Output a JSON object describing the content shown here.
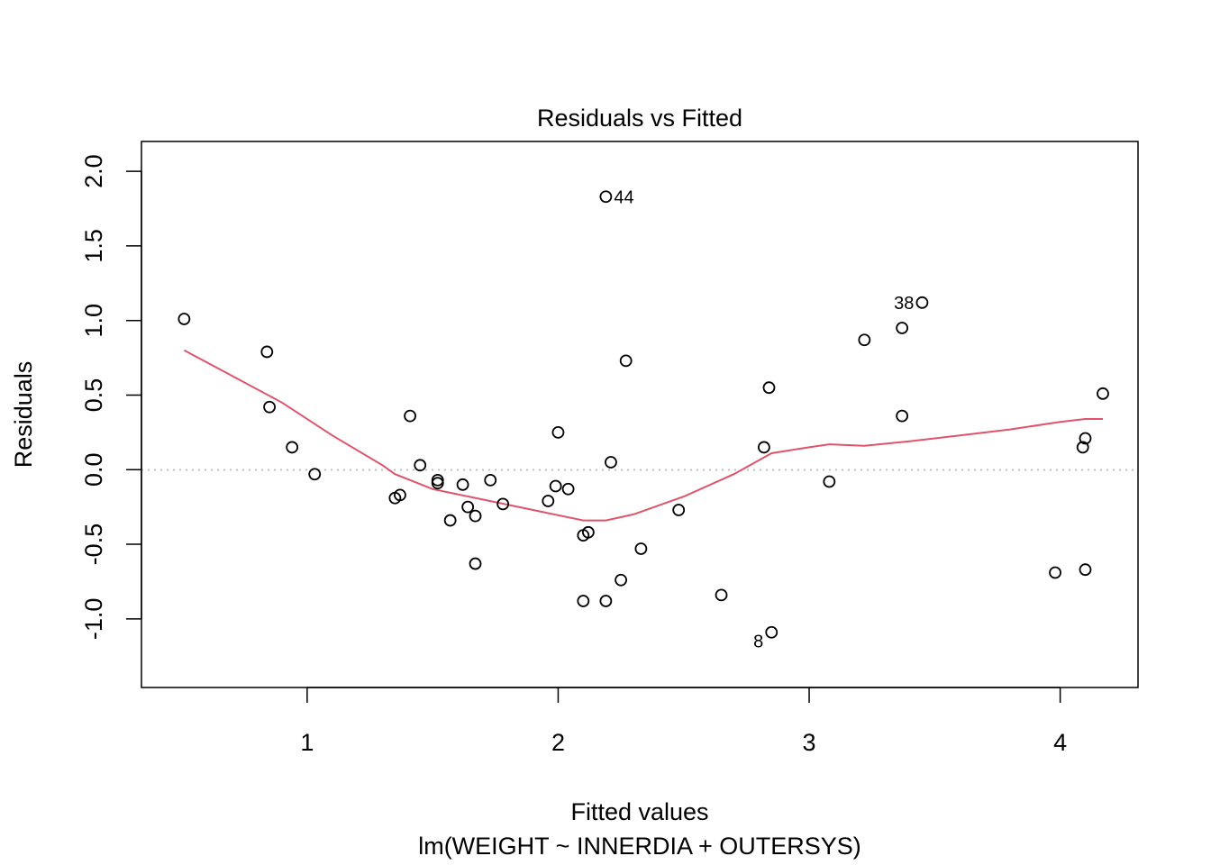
{
  "chart_data": {
    "type": "scatter",
    "title": "Residuals vs Fitted",
    "xlabel": "Fitted values",
    "subtitle": "lm(WEIGHT ~ INNERDIA + OUTERSYS)",
    "ylabel": "Residuals",
    "xlim": [
      0.34,
      4.31
    ],
    "ylim": [
      -1.46,
      2.2
    ],
    "xticks": [
      1,
      2,
      3,
      4
    ],
    "yticks": [
      -1.0,
      -0.5,
      0.0,
      0.5,
      1.0,
      1.5,
      2.0
    ],
    "xtick_labels": [
      "1",
      "2",
      "3",
      "4"
    ],
    "ytick_labels": [
      "-1.0",
      "-0.5",
      "0.0",
      "0.5",
      "1.0",
      "1.5",
      "2.0"
    ],
    "grid": false,
    "reference_line": {
      "y": 0,
      "style": "dotted",
      "color": "#c0c0c0"
    },
    "points": [
      {
        "x": 0.51,
        "y": 1.01
      },
      {
        "x": 0.84,
        "y": 0.79
      },
      {
        "x": 0.85,
        "y": 0.42
      },
      {
        "x": 0.94,
        "y": 0.15
      },
      {
        "x": 1.03,
        "y": -0.03
      },
      {
        "x": 1.35,
        "y": -0.19
      },
      {
        "x": 1.37,
        "y": -0.17
      },
      {
        "x": 1.41,
        "y": 0.36
      },
      {
        "x": 1.45,
        "y": 0.03
      },
      {
        "x": 1.52,
        "y": -0.07
      },
      {
        "x": 1.52,
        "y": -0.09
      },
      {
        "x": 1.57,
        "y": -0.34
      },
      {
        "x": 1.62,
        "y": -0.1
      },
      {
        "x": 1.64,
        "y": -0.25
      },
      {
        "x": 1.67,
        "y": -0.31
      },
      {
        "x": 1.67,
        "y": -0.63
      },
      {
        "x": 1.73,
        "y": -0.07
      },
      {
        "x": 1.78,
        "y": -0.23
      },
      {
        "x": 1.96,
        "y": -0.21
      },
      {
        "x": 1.99,
        "y": -0.11
      },
      {
        "x": 2.0,
        "y": 0.25
      },
      {
        "x": 2.04,
        "y": -0.13
      },
      {
        "x": 2.1,
        "y": -0.44
      },
      {
        "x": 2.1,
        "y": -0.88
      },
      {
        "x": 2.12,
        "y": -0.42
      },
      {
        "x": 2.19,
        "y": 1.83
      },
      {
        "x": 2.19,
        "y": -0.88
      },
      {
        "x": 2.21,
        "y": 0.05
      },
      {
        "x": 2.25,
        "y": -0.74
      },
      {
        "x": 2.27,
        "y": 0.73
      },
      {
        "x": 2.33,
        "y": -0.53
      },
      {
        "x": 2.48,
        "y": -0.27
      },
      {
        "x": 2.65,
        "y": -0.84
      },
      {
        "x": 2.82,
        "y": 0.15
      },
      {
        "x": 2.84,
        "y": 0.55
      },
      {
        "x": 2.85,
        "y": -1.09
      },
      {
        "x": 3.08,
        "y": -0.08
      },
      {
        "x": 3.22,
        "y": 0.87
      },
      {
        "x": 3.37,
        "y": 0.95
      },
      {
        "x": 3.37,
        "y": 0.36
      },
      {
        "x": 3.45,
        "y": 1.12
      },
      {
        "x": 3.98,
        "y": -0.69
      },
      {
        "x": 4.09,
        "y": 0.15
      },
      {
        "x": 4.1,
        "y": 0.21
      },
      {
        "x": 4.1,
        "y": -0.67
      },
      {
        "x": 4.17,
        "y": 0.51
      }
    ],
    "point_labels": [
      {
        "text": "44",
        "x": 2.19,
        "y": 1.83,
        "side": "right"
      },
      {
        "text": "38",
        "x": 3.45,
        "y": 1.12,
        "side": "left"
      },
      {
        "text": "8",
        "x": 2.85,
        "y": -1.09,
        "side": "left"
      }
    ],
    "smooth_line": {
      "color": "#DF536B",
      "points": [
        [
          0.51,
          0.8
        ],
        [
          0.7,
          0.63
        ],
        [
          0.9,
          0.45
        ],
        [
          1.1,
          0.23
        ],
        [
          1.3,
          0.03
        ],
        [
          1.35,
          -0.03
        ],
        [
          1.5,
          -0.13
        ],
        [
          1.7,
          -0.2
        ],
        [
          1.9,
          -0.27
        ],
        [
          2.1,
          -0.34
        ],
        [
          2.19,
          -0.34
        ],
        [
          2.3,
          -0.3
        ],
        [
          2.5,
          -0.18
        ],
        [
          2.7,
          -0.03
        ],
        [
          2.85,
          0.11
        ],
        [
          3.0,
          0.15
        ],
        [
          3.08,
          0.17
        ],
        [
          3.22,
          0.16
        ],
        [
          3.4,
          0.19
        ],
        [
          3.6,
          0.23
        ],
        [
          3.8,
          0.27
        ],
        [
          4.0,
          0.32
        ],
        [
          4.1,
          0.34
        ],
        [
          4.17,
          0.34
        ]
      ]
    }
  }
}
